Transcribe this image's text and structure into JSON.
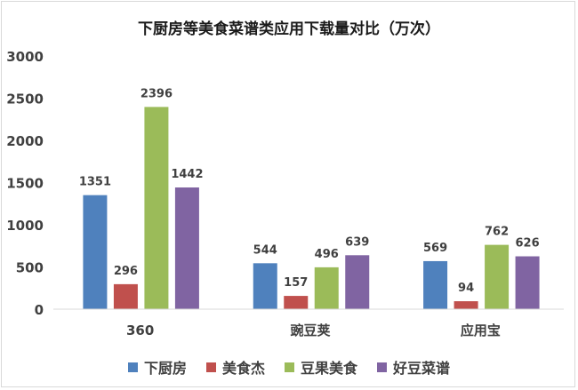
{
  "chart_data": {
    "type": "bar",
    "title": "下厨房等美食菜谱类应用下载量对比（万次）",
    "categories": [
      "360",
      "豌豆荚",
      "应用宝"
    ],
    "series": [
      {
        "name": "下厨房",
        "color": "#4f81bd",
        "values": [
          1351,
          544,
          569
        ]
      },
      {
        "name": "美食杰",
        "color": "#c0504d",
        "values": [
          296,
          157,
          94
        ]
      },
      {
        "name": "豆果美食",
        "color": "#9bbb59",
        "values": [
          2396,
          496,
          762
        ]
      },
      {
        "name": "好豆菜谱",
        "color": "#8064a2",
        "values": [
          1442,
          639,
          626
        ]
      }
    ],
    "ylim": [
      0,
      3000
    ],
    "yticks": [
      0,
      500,
      1000,
      1500,
      2000,
      2500,
      3000
    ],
    "grid": false,
    "legend_position": "bottom"
  }
}
